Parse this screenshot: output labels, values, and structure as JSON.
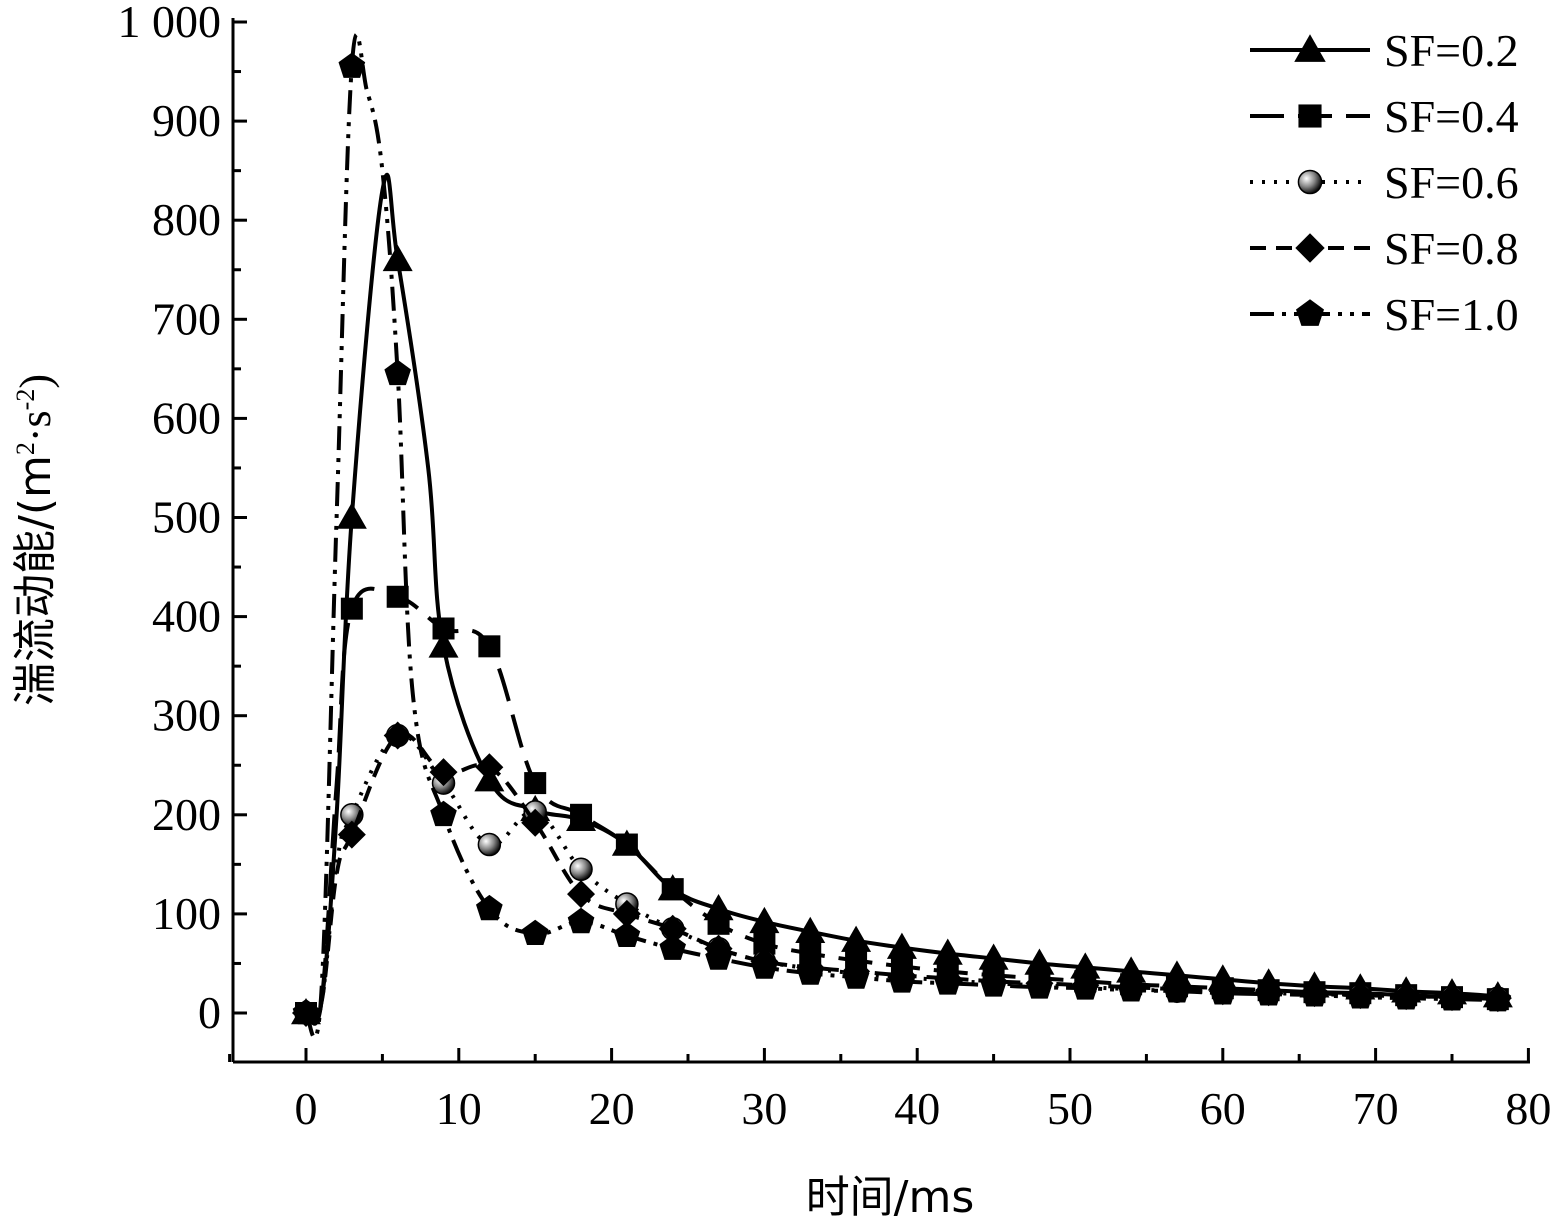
{
  "chart_data": {
    "type": "line",
    "title": "",
    "xlabel": "时间/ms",
    "ylabel": "湍流动能/(m²·s⁻²)",
    "ylabel_parts": {
      "prefix": "湍流动能/(m",
      "sup1": "2",
      "mid": "·s",
      "sup2": "-2",
      "suffix": ")"
    },
    "xlim": [
      -5,
      80
    ],
    "ylim": [
      -50,
      1000
    ],
    "xticks": [
      0,
      10,
      20,
      30,
      40,
      50,
      60,
      70,
      80
    ],
    "yticks": [
      0,
      100,
      200,
      300,
      400,
      500,
      600,
      700,
      800,
      900,
      1000
    ],
    "ytick_labels": [
      "0",
      "100",
      "200",
      "300",
      "400",
      "500",
      "600",
      "700",
      "800",
      "900",
      "1 000"
    ],
    "grid": false,
    "legend_position": "top-right",
    "series": [
      {
        "name": "SF=0.2",
        "marker": "triangle",
        "line_style": "solid",
        "x": [
          0,
          1,
          2,
          3,
          5,
          6,
          8,
          9,
          12,
          15,
          18,
          21,
          24,
          27,
          30,
          33,
          36,
          39,
          42,
          45,
          48,
          51,
          54,
          57,
          60,
          63,
          66,
          69,
          72,
          75,
          78
        ],
        "y": [
          0,
          10,
          200,
          500,
          830,
          760,
          550,
          370,
          235,
          205,
          195,
          170,
          125,
          105,
          92,
          82,
          73,
          66,
          60,
          55,
          50,
          46,
          42,
          38,
          34,
          30,
          27,
          25,
          22,
          20,
          17
        ]
      },
      {
        "name": "SF=0.4",
        "marker": "square",
        "line_style": "dash",
        "x": [
          0,
          1,
          2,
          3,
          6,
          9,
          12,
          15,
          18,
          21,
          24,
          27,
          30,
          33,
          36,
          39,
          42,
          45,
          48,
          51,
          54,
          57,
          60,
          63,
          66,
          69,
          72,
          75,
          78
        ],
        "y": [
          0,
          10,
          230,
          408,
          420,
          388,
          370,
          232,
          200,
          170,
          125,
          90,
          70,
          60,
          53,
          47,
          42,
          38,
          35,
          32,
          29,
          27,
          25,
          23,
          21,
          20,
          18,
          16,
          14
        ]
      },
      {
        "name": "SF=0.6",
        "marker": "circle",
        "line_style": "dot",
        "x": [
          0,
          1,
          2,
          3,
          6,
          9,
          12,
          15,
          18,
          21,
          24,
          27,
          30,
          33,
          36,
          39,
          42,
          45,
          48,
          51,
          54,
          57,
          60,
          63,
          66,
          69,
          72,
          75,
          78
        ],
        "y": [
          0,
          10,
          150,
          200,
          280,
          232,
          170,
          203,
          145,
          110,
          85,
          65,
          52,
          45,
          40,
          36,
          33,
          30,
          28,
          26,
          24,
          22,
          21,
          20,
          19,
          18,
          17,
          16,
          15
        ]
      },
      {
        "name": "SF=0.8",
        "marker": "diamond",
        "line_style": "short-dash",
        "x": [
          0,
          1,
          2,
          3,
          6,
          9,
          12,
          15,
          18,
          21,
          24,
          27,
          30,
          33,
          36,
          39,
          42,
          45,
          48,
          51,
          54,
          57,
          60,
          63,
          66,
          69,
          72,
          75,
          78
        ],
        "y": [
          0,
          10,
          140,
          180,
          280,
          243,
          248,
          192,
          120,
          100,
          85,
          65,
          52,
          46,
          42,
          38,
          35,
          32,
          30,
          28,
          26,
          24,
          22,
          21,
          20,
          18,
          17,
          16,
          15
        ]
      },
      {
        "name": "SF=1.0",
        "marker": "pentagon",
        "line_style": "dash-dot-dot",
        "x": [
          0,
          1,
          2,
          3,
          4,
          5,
          6,
          7,
          9,
          12,
          15,
          18,
          21,
          24,
          27,
          30,
          33,
          36,
          39,
          42,
          45,
          48,
          51,
          54,
          57,
          60,
          63,
          66,
          69,
          72,
          75,
          78
        ],
        "y": [
          0,
          20,
          500,
          955,
          930,
          850,
          645,
          320,
          200,
          105,
          80,
          92,
          78,
          65,
          55,
          46,
          40,
          36,
          32,
          30,
          28,
          26,
          25,
          23,
          22,
          20,
          19,
          18,
          16,
          15,
          14,
          13
        ]
      }
    ]
  }
}
